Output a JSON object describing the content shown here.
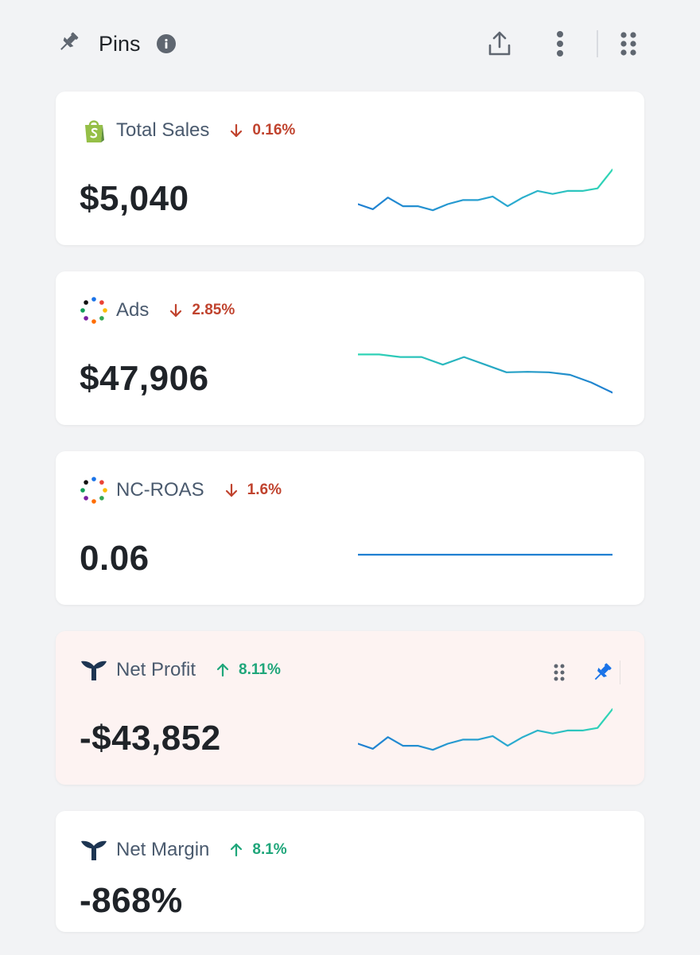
{
  "header": {
    "title": "Pins",
    "icons": [
      "pin-icon",
      "info-icon",
      "share-icon",
      "more-vertical-icon",
      "drag-grid-icon"
    ]
  },
  "colors": {
    "down": "#c0432e",
    "up": "#1fa67a",
    "line_start": "#2fd6b4",
    "line_end": "#1f7fd1",
    "shopify": "#95bf47",
    "pin_active": "#1a73e8",
    "highlight_bg": "#fdf3f2"
  },
  "cards": [
    {
      "title": "Total Sales",
      "icon": "shopify-icon",
      "delta": "0.16%",
      "direction": "down",
      "value": "$5,040",
      "sparkline": [
        0.32,
        0.22,
        0.45,
        0.28,
        0.28,
        0.2,
        0.32,
        0.4,
        0.4,
        0.47,
        0.28,
        0.45,
        0.58,
        0.52,
        0.58,
        0.58,
        0.63,
        1.0
      ]
    },
    {
      "title": "Ads",
      "icon": "multi-channel-icon",
      "delta": "2.85%",
      "direction": "down",
      "value": "$47,906",
      "sparkline": [
        0.9,
        0.9,
        0.85,
        0.85,
        0.7,
        0.85,
        0.7,
        0.55,
        0.56,
        0.55,
        0.5,
        0.35,
        0.15
      ]
    },
    {
      "title": "NC-ROAS",
      "icon": "multi-channel-icon",
      "delta": "1.6%",
      "direction": "down",
      "value": "0.06",
      "sparkline": [
        0.5,
        0.5,
        0.5,
        0.5,
        0.5,
        0.5,
        0.5,
        0.5,
        0.5,
        0.5
      ]
    },
    {
      "title": "Net Profit",
      "icon": "triple-whale-icon",
      "delta": "8.11%",
      "direction": "up",
      "value": "-$43,852",
      "highlight": true,
      "actions": [
        "drag-handle-icon",
        "pin-icon"
      ],
      "sparkline": [
        0.32,
        0.22,
        0.45,
        0.28,
        0.28,
        0.2,
        0.32,
        0.4,
        0.4,
        0.47,
        0.28,
        0.45,
        0.58,
        0.52,
        0.58,
        0.58,
        0.63,
        1.0
      ]
    },
    {
      "title": "Net Margin",
      "icon": "triple-whale-icon",
      "delta": "8.1%",
      "direction": "up",
      "value": "-868%"
    }
  ]
}
